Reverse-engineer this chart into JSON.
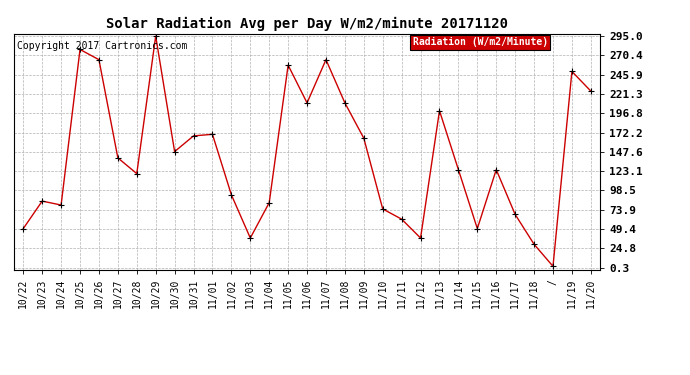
{
  "title": "Solar Radiation Avg per Day W/m2/minute 20171120",
  "copyright_text": "Copyright 2017 Cartronics.com",
  "legend_label": "Radiation (W/m2/Minute)",
  "x_labels": [
    "10/22",
    "10/23",
    "10/24",
    "10/25",
    "10/26",
    "10/27",
    "10/28",
    "10/29",
    "10/30",
    "10/31",
    "11/01",
    "11/02",
    "11/03",
    "11/04",
    "11/05",
    "11/06",
    "11/07",
    "11/08",
    "11/09",
    "11/10",
    "11/11",
    "11/12",
    "11/13",
    "11/14",
    "11/15",
    "11/16",
    "11/17",
    "11/18",
    "/",
    "11/19",
    "11/20"
  ],
  "y_values": [
    50,
    85,
    80,
    278,
    265,
    140,
    120,
    295,
    148,
    168,
    170,
    93,
    38,
    83,
    258,
    210,
    265,
    210,
    165,
    75,
    62,
    38,
    200,
    125,
    50,
    125,
    68,
    30,
    2,
    250,
    225
  ],
  "y_ticks": [
    0.3,
    24.8,
    49.4,
    73.9,
    98.5,
    123.1,
    147.6,
    172.2,
    196.8,
    221.3,
    245.9,
    270.4,
    295.0
  ],
  "line_color": "#cc0000",
  "marker_color": "#000000",
  "background_color": "#ffffff",
  "grid_color": "#aaaaaa",
  "legend_bg": "#cc0000",
  "legend_text_color": "#ffffff",
  "title_fontsize": 10,
  "copyright_fontsize": 7,
  "tick_fontsize": 7,
  "y_label_fontsize": 8
}
